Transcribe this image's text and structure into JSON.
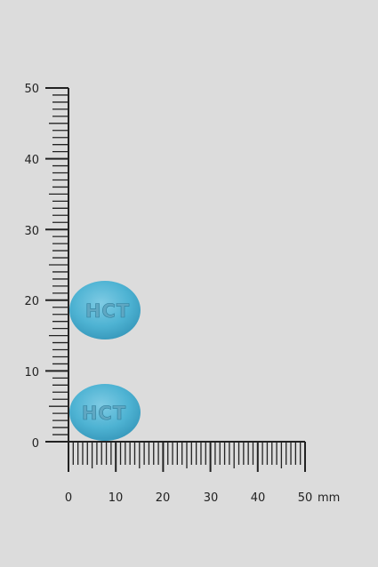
{
  "ruler": {
    "unit_label": "mm",
    "vertical": {
      "min": 0,
      "max": 50,
      "labels": [
        "0",
        "10",
        "20",
        "30",
        "40",
        "50"
      ]
    },
    "horizontal": {
      "min": 0,
      "max": 50,
      "labels": [
        "0",
        "10",
        "20",
        "30",
        "40",
        "50"
      ]
    },
    "color": "#222222"
  },
  "pills": [
    {
      "imprint": "HCT",
      "color": "#4eb3d3"
    },
    {
      "imprint": "HCT",
      "color": "#4eb3d3"
    }
  ],
  "background": "#dcdcdc"
}
